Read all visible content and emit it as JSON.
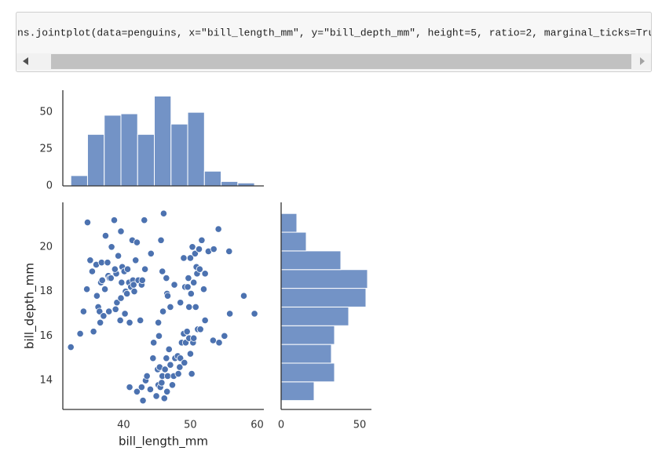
{
  "cell": {
    "code": "ns.jointplot(data=penguins, x=\"bill_length_mm\", y=\"bill_depth_mm\", height=5, ratio=2, marginal_ticks=True)"
  },
  "chart_data": [
    {
      "type": "histogram",
      "orientation": "vertical",
      "bins": [
        32.1,
        34.6,
        37.1,
        39.6,
        42.1,
        44.6,
        47.1,
        49.6,
        52.1,
        54.6,
        57.1,
        59.6
      ],
      "values": [
        7,
        35,
        48,
        49,
        35,
        61,
        42,
        50,
        10,
        3,
        2
      ],
      "xlim": [
        30.9,
        61.0
      ],
      "ylim": [
        0,
        65
      ],
      "yticks": [
        0,
        25,
        50
      ],
      "color": "#7393c6"
    },
    {
      "type": "scatter",
      "x": [
        32.1,
        33.5,
        34.6,
        34.0,
        34.5,
        35.0,
        35.3,
        35.5,
        35.9,
        36.0,
        36.2,
        36.4,
        36.6,
        36.7,
        36.8,
        37.0,
        37.3,
        37.6,
        37.7,
        37.8,
        37.9,
        38.1,
        38.2,
        38.6,
        38.8,
        38.9,
        39.0,
        39.2,
        39.5,
        39.6,
        39.7,
        39.8,
        40.1,
        40.2,
        40.3,
        40.5,
        40.6,
        40.8,
        40.9,
        41.1,
        41.3,
        41.4,
        41.5,
        41.6,
        41.8,
        42.0,
        42.2,
        42.5,
        42.7,
        42.8,
        43.2,
        44.1,
        45.8,
        46.0,
        45.6,
        43.1,
        39.6,
        38.7,
        37.2,
        36.5,
        40.9,
        42.0,
        42.7,
        42.9,
        43.3,
        43.5,
        44.0,
        44.4,
        44.9,
        45.1,
        45.2,
        45.4,
        45.5,
        45.7,
        45.8,
        46.1,
        46.2,
        46.4,
        46.5,
        46.6,
        46.8,
        47.0,
        47.3,
        47.5,
        47.7,
        48.1,
        48.2,
        48.4,
        48.5,
        48.7,
        49.0,
        49.1,
        49.3,
        49.5,
        49.8,
        50.0,
        50.2,
        50.4,
        50.5,
        50.8,
        51.1,
        51.5,
        52.2,
        53.4,
        54.3,
        55.1,
        55.9,
        59.6,
        45.3,
        44.5,
        46.5,
        45.9,
        45.2,
        46.6,
        47.0,
        47.6,
        48.5,
        49.0,
        49.2,
        49.6,
        49.7,
        50.0,
        50.1,
        50.3,
        50.5,
        50.7,
        50.9,
        51.0,
        51.3,
        51.4,
        51.7,
        52.0,
        52.2,
        52.7,
        53.5,
        54.2,
        55.8,
        58.0,
        49.8,
        46.4
      ],
      "values": [
        15.5,
        16.1,
        21.1,
        17.1,
        18.1,
        19.4,
        18.9,
        16.2,
        19.2,
        17.8,
        17.3,
        17.1,
        18.4,
        19.3,
        18.5,
        16.9,
        20.5,
        19.3,
        18.7,
        17.1,
        18.6,
        18.6,
        20.0,
        21.2,
        17.2,
        18.8,
        17.5,
        19.6,
        16.7,
        17.7,
        18.4,
        19.1,
        18.9,
        17.0,
        18.0,
        17.9,
        19.0,
        18.4,
        16.6,
        18.2,
        20.3,
        18.5,
        18.3,
        18.0,
        19.4,
        20.2,
        18.5,
        16.7,
        18.3,
        18.5,
        19.0,
        19.7,
        18.9,
        21.5,
        20.3,
        21.2,
        20.7,
        19.0,
        18.1,
        16.6,
        13.7,
        13.5,
        13.7,
        13.1,
        14.0,
        14.2,
        13.6,
        15.0,
        13.3,
        14.5,
        13.8,
        14.6,
        13.7,
        13.9,
        14.2,
        13.2,
        14.5,
        15.0,
        13.5,
        14.2,
        15.4,
        14.7,
        13.8,
        14.2,
        15.0,
        15.1,
        14.3,
        14.6,
        15.0,
        15.7,
        16.1,
        14.8,
        15.7,
        16.2,
        15.9,
        15.2,
        14.3,
        15.7,
        15.9,
        17.3,
        16.3,
        16.3,
        16.7,
        15.8,
        15.7,
        16.0,
        17.0,
        17.0,
        16.0,
        15.7,
        17.9,
        17.1,
        16.6,
        17.8,
        17.3,
        18.3,
        17.5,
        19.5,
        18.2,
        18.2,
        18.6,
        19.5,
        17.9,
        20.0,
        18.4,
        19.7,
        19.1,
        18.8,
        19.9,
        19.0,
        20.3,
        18.1,
        18.8,
        19.8,
        19.9,
        20.8,
        19.8,
        17.8,
        17.3,
        18.6
      ],
      "xlim": [
        30.9,
        61.0
      ],
      "ylim": [
        12.7,
        22.0
      ],
      "xticks": [
        40,
        50,
        60
      ],
      "yticks": [
        14,
        16,
        18,
        20
      ],
      "xlabel": "bill_length_mm",
      "ylabel": "bill_depth_mm",
      "color": "#4c72b0"
    },
    {
      "type": "histogram",
      "orientation": "horizontal",
      "bins": [
        13.1,
        13.94,
        14.78,
        15.62,
        16.46,
        17.3,
        18.14,
        18.98,
        19.82,
        20.66,
        21.5
      ],
      "values": [
        21,
        34,
        32,
        34,
        43,
        54,
        55,
        38,
        16,
        10
      ],
      "xlim": [
        0,
        57.5
      ],
      "ylim": [
        12.7,
        22.0
      ],
      "xticks": [
        0,
        50
      ],
      "color": "#7393c6"
    }
  ]
}
